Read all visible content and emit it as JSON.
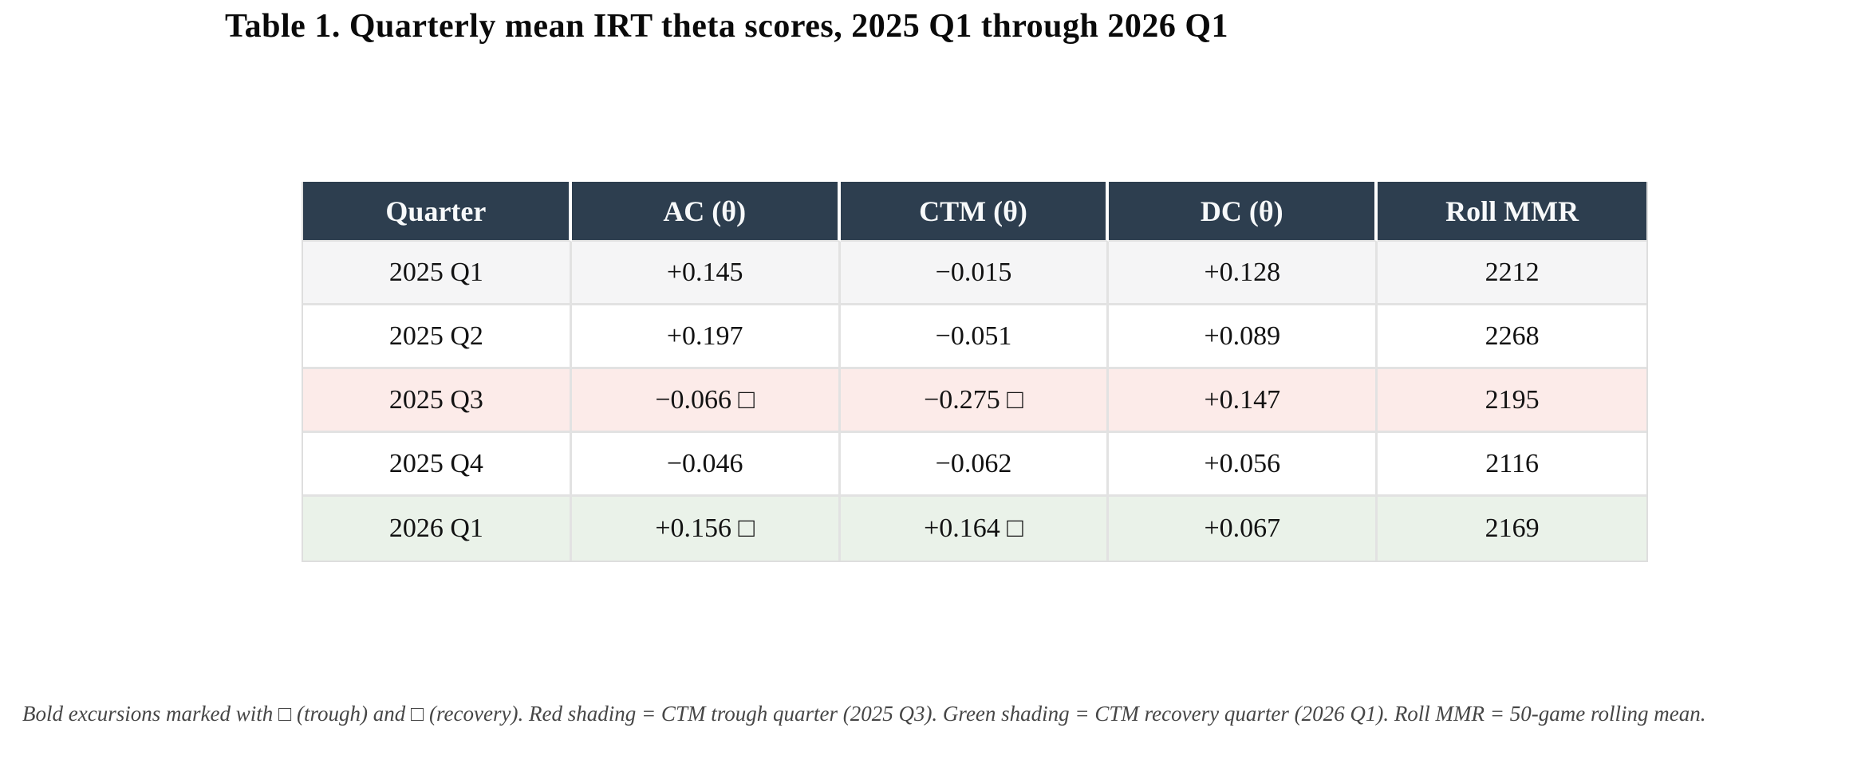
{
  "title": "Table 1. Quarterly mean IRT theta scores, 2025 Q1 through 2026 Q1",
  "table": {
    "columns": [
      "Quarter",
      "AC (θ)",
      "CTM (θ)",
      "DC (θ)",
      "Roll MMR"
    ],
    "field_order": [
      "quarter",
      "ac",
      "ctm",
      "dc",
      "roll_mmr"
    ],
    "rows": [
      {
        "quarter": "2025 Q1",
        "ac": "+0.145",
        "ctm": "−0.015",
        "dc": "+0.128",
        "roll_mmr": "2212",
        "highlight": "none"
      },
      {
        "quarter": "2025 Q2",
        "ac": "+0.197",
        "ctm": "−0.051",
        "dc": "+0.089",
        "roll_mmr": "2268",
        "highlight": "none"
      },
      {
        "quarter": "2025 Q3",
        "ac": "−0.066 □",
        "ctm": "−0.275 □",
        "dc": "+0.147",
        "roll_mmr": "2195",
        "highlight": "trough"
      },
      {
        "quarter": "2025 Q4",
        "ac": "−0.046",
        "ctm": "−0.062",
        "dc": "+0.056",
        "roll_mmr": "2116",
        "highlight": "none"
      },
      {
        "quarter": "2026 Q1",
        "ac": "+0.156 □",
        "ctm": "+0.164 □",
        "dc": "+0.067",
        "roll_mmr": "2169",
        "highlight": "recovery"
      }
    ]
  },
  "footnote": "Bold excursions marked with □ (trough) and □ (recovery). Red shading = CTM trough quarter (2025 Q3). Green shading = CTM recovery quarter (2026 Q1). Roll MMR = 50-game rolling mean.",
  "colors": {
    "title_text": "#0a0a0a",
    "header_bg": "#2d3e4f",
    "header_text": "#f7f9fa",
    "body_text": "#121212",
    "row_alt": "#f5f5f6",
    "row_trough": "#fcebe9",
    "row_recovery": "#eaf2e9",
    "border": "#dedede",
    "divider": "#e2e2e2",
    "footnote_text": "#464646"
  }
}
